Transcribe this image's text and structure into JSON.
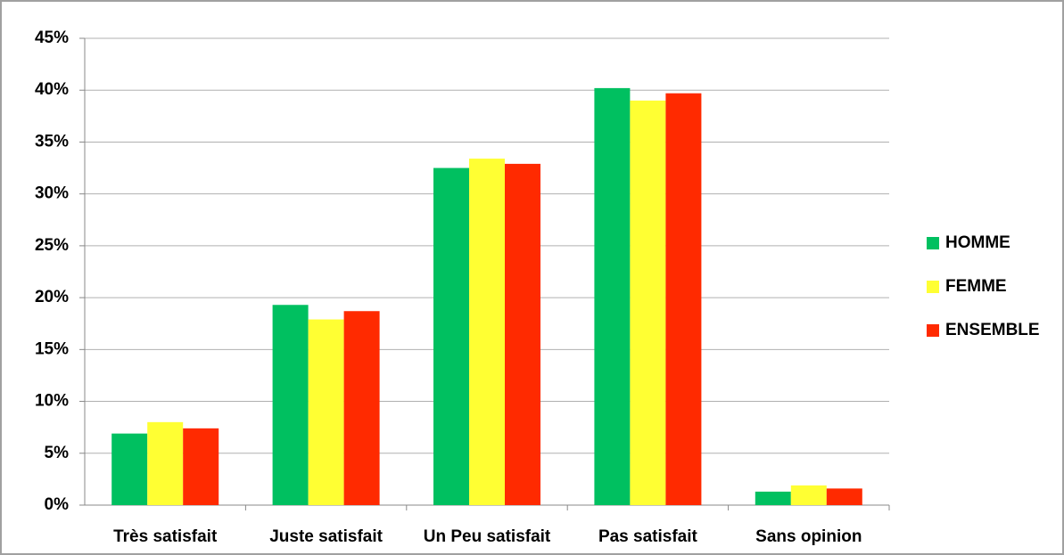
{
  "chart_data": {
    "type": "bar",
    "categories": [
      "Très satisfait",
      "Juste satisfait",
      "Un Peu satisfait",
      "Pas satisfait",
      "Sans opinion"
    ],
    "series": [
      {
        "name": "HOMME",
        "color": "#00c060",
        "values": [
          6.9,
          19.3,
          32.5,
          40.2,
          1.3
        ]
      },
      {
        "name": "FEMME",
        "color": "#ffff33",
        "values": [
          8.0,
          17.9,
          33.4,
          39.0,
          1.9
        ]
      },
      {
        "name": "ENSEMBLE",
        "color": "#ff2a00",
        "values": [
          7.4,
          18.7,
          32.9,
          39.7,
          1.6
        ]
      }
    ],
    "ylim": [
      0,
      45
    ],
    "yticks": [
      {
        "value": 0,
        "label": "0%"
      },
      {
        "value": 5,
        "label": "5%"
      },
      {
        "value": 10,
        "label": "10%"
      },
      {
        "value": 15,
        "label": "15%"
      },
      {
        "value": 20,
        "label": "20%"
      },
      {
        "value": 25,
        "label": "25%"
      },
      {
        "value": 30,
        "label": "30%"
      },
      {
        "value": 35,
        "label": "35%"
      },
      {
        "value": 40,
        "label": "40%"
      },
      {
        "value": 45,
        "label": "45%"
      }
    ],
    "grid": true,
    "legend": "right"
  }
}
